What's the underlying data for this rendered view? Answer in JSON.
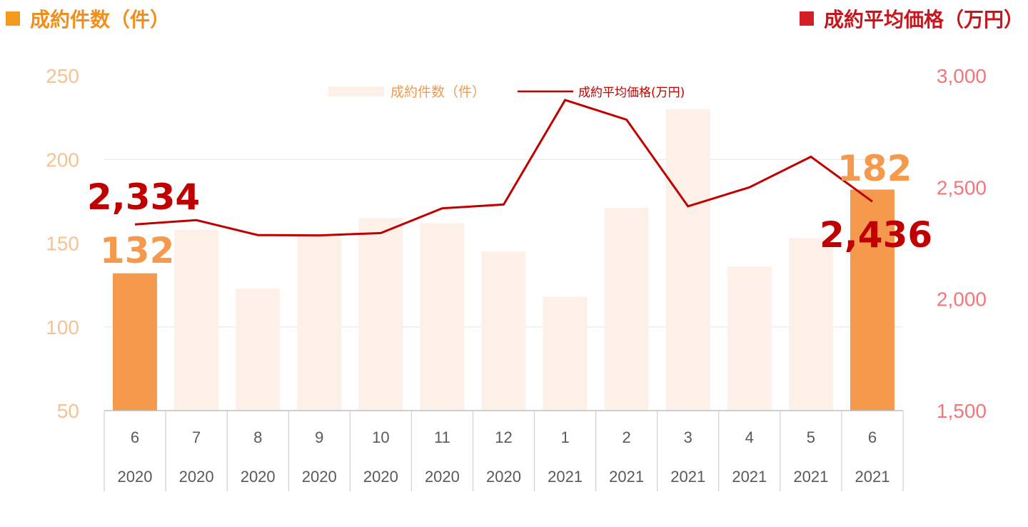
{
  "header": {
    "left_title": "成約件数（件）",
    "right_title": "成約平均価格（万円）",
    "left_color": "#f29a1e",
    "right_color": "#d21e24"
  },
  "legend": {
    "count_label": "成約件数（件）",
    "price_label": "成約平均価格(万円)"
  },
  "chart_data": {
    "type": "bar",
    "categories": [
      {
        "month": "6",
        "year": "2020"
      },
      {
        "month": "7",
        "year": "2020"
      },
      {
        "month": "8",
        "year": "2020"
      },
      {
        "month": "9",
        "year": "2020"
      },
      {
        "month": "10",
        "year": "2020"
      },
      {
        "month": "11",
        "year": "2020"
      },
      {
        "month": "12",
        "year": "2020"
      },
      {
        "month": "1",
        "year": "2021"
      },
      {
        "month": "2",
        "year": "2021"
      },
      {
        "month": "3",
        "year": "2021"
      },
      {
        "month": "4",
        "year": "2021"
      },
      {
        "month": "5",
        "year": "2021"
      },
      {
        "month": "6",
        "year": "2021"
      }
    ],
    "series": [
      {
        "name": "成約件数（件）",
        "type": "bar",
        "axis": "left",
        "values": [
          132,
          158,
          123,
          155,
          165,
          162,
          145,
          118,
          171,
          230,
          136,
          153,
          182
        ],
        "highlighted_indices": [
          0,
          12
        ],
        "highlight_color": "#f59a4c",
        "color": "#fdf0e8"
      },
      {
        "name": "成約平均価格(万円)",
        "type": "line",
        "axis": "right",
        "values": [
          2334,
          2353,
          2286,
          2285,
          2295,
          2406,
          2423,
          2891,
          2803,
          2415,
          2500,
          2637,
          2436
        ],
        "color": "#c00000"
      }
    ],
    "left_axis": {
      "ylim": [
        50,
        250
      ],
      "ticks": [
        "50",
        "100",
        "150",
        "200",
        "250"
      ]
    },
    "right_axis": {
      "ylim": [
        1500,
        3000
      ],
      "ticks": [
        "1,500",
        "2,000",
        "2,500",
        "3,000"
      ]
    },
    "annotations": {
      "count_first": "132",
      "count_last": "182",
      "price_first": "2,334",
      "price_last": "2,436"
    },
    "grid": "horizontal",
    "legend_position": "top-center"
  }
}
